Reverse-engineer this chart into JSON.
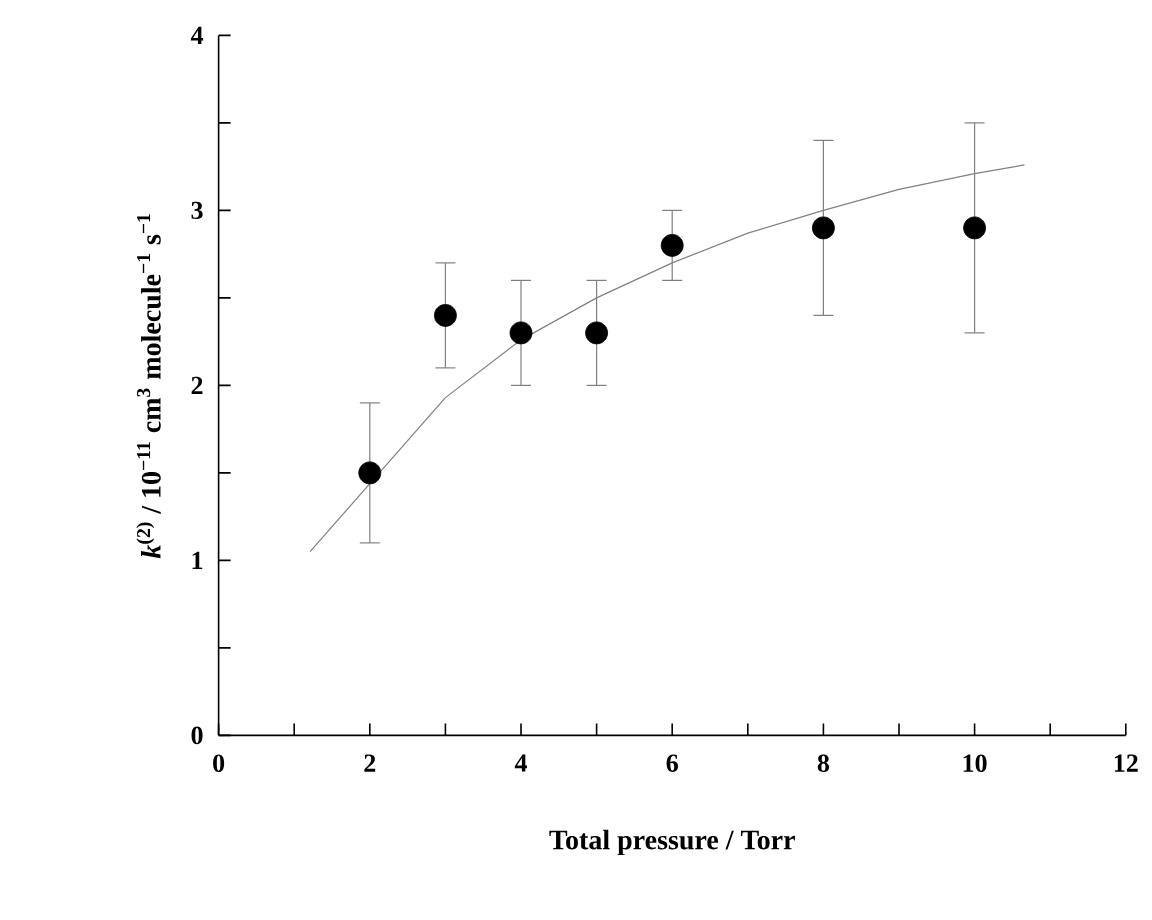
{
  "chart_data": {
    "type": "scatter",
    "xlabel": "Total pressure / Torr",
    "ylabel": "*k*$^{(2)}$ / 10$^{−11}$ cm$^{3}$ molecule$^{−1}$ s$^{−1}$",
    "series": [
      {
        "color": "#000000",
        "marker": "circle",
        "x": [
          2,
          3,
          4,
          5,
          6,
          8,
          10
        ],
        "values": [
          1.5,
          2.4,
          2.3,
          2.3,
          2.8,
          2.9,
          2.9
        ],
        "errors": [
          [
            1.1,
            1.9
          ],
          [
            2.1,
            2.7
          ],
          [
            2.0,
            2.6
          ],
          [
            2.0,
            2.6
          ],
          [
            2.6,
            3.0
          ],
          [
            2.4,
            3.4
          ],
          [
            2.3,
            3.5
          ]
        ]
      },
      {
        "type": "line",
        "color": "#808080",
        "marker": "none",
        "x": [
          1.21,
          3,
          4,
          5,
          6,
          7,
          8,
          9,
          10,
          10.66
        ],
        "values": [
          1.05,
          1.93,
          2.26,
          2.5,
          2.7,
          2.87,
          3.0,
          3.12,
          3.21,
          3.26
        ]
      }
    ],
    "xlim": [
      0,
      12
    ],
    "xticks": [
      0,
      {
        "value": 1,
        "label": null
      },
      2,
      {
        "value": 3,
        "label": null
      },
      4,
      {
        "value": 5,
        "label": null
      },
      6,
      {
        "value": 7,
        "label": null
      },
      8,
      {
        "value": 9,
        "label": null
      },
      10,
      {
        "value": 11,
        "label": null
      },
      12
    ],
    "ylim": [
      0,
      4
    ],
    "yticks": [
      0,
      {
        "value": 0.5,
        "label": null
      },
      1,
      {
        "value": 1.5,
        "label": null
      },
      2,
      {
        "value": 2.5,
        "label": null
      },
      3,
      {
        "value": 3.5,
        "label": null
      },
      4
    ]
  }
}
